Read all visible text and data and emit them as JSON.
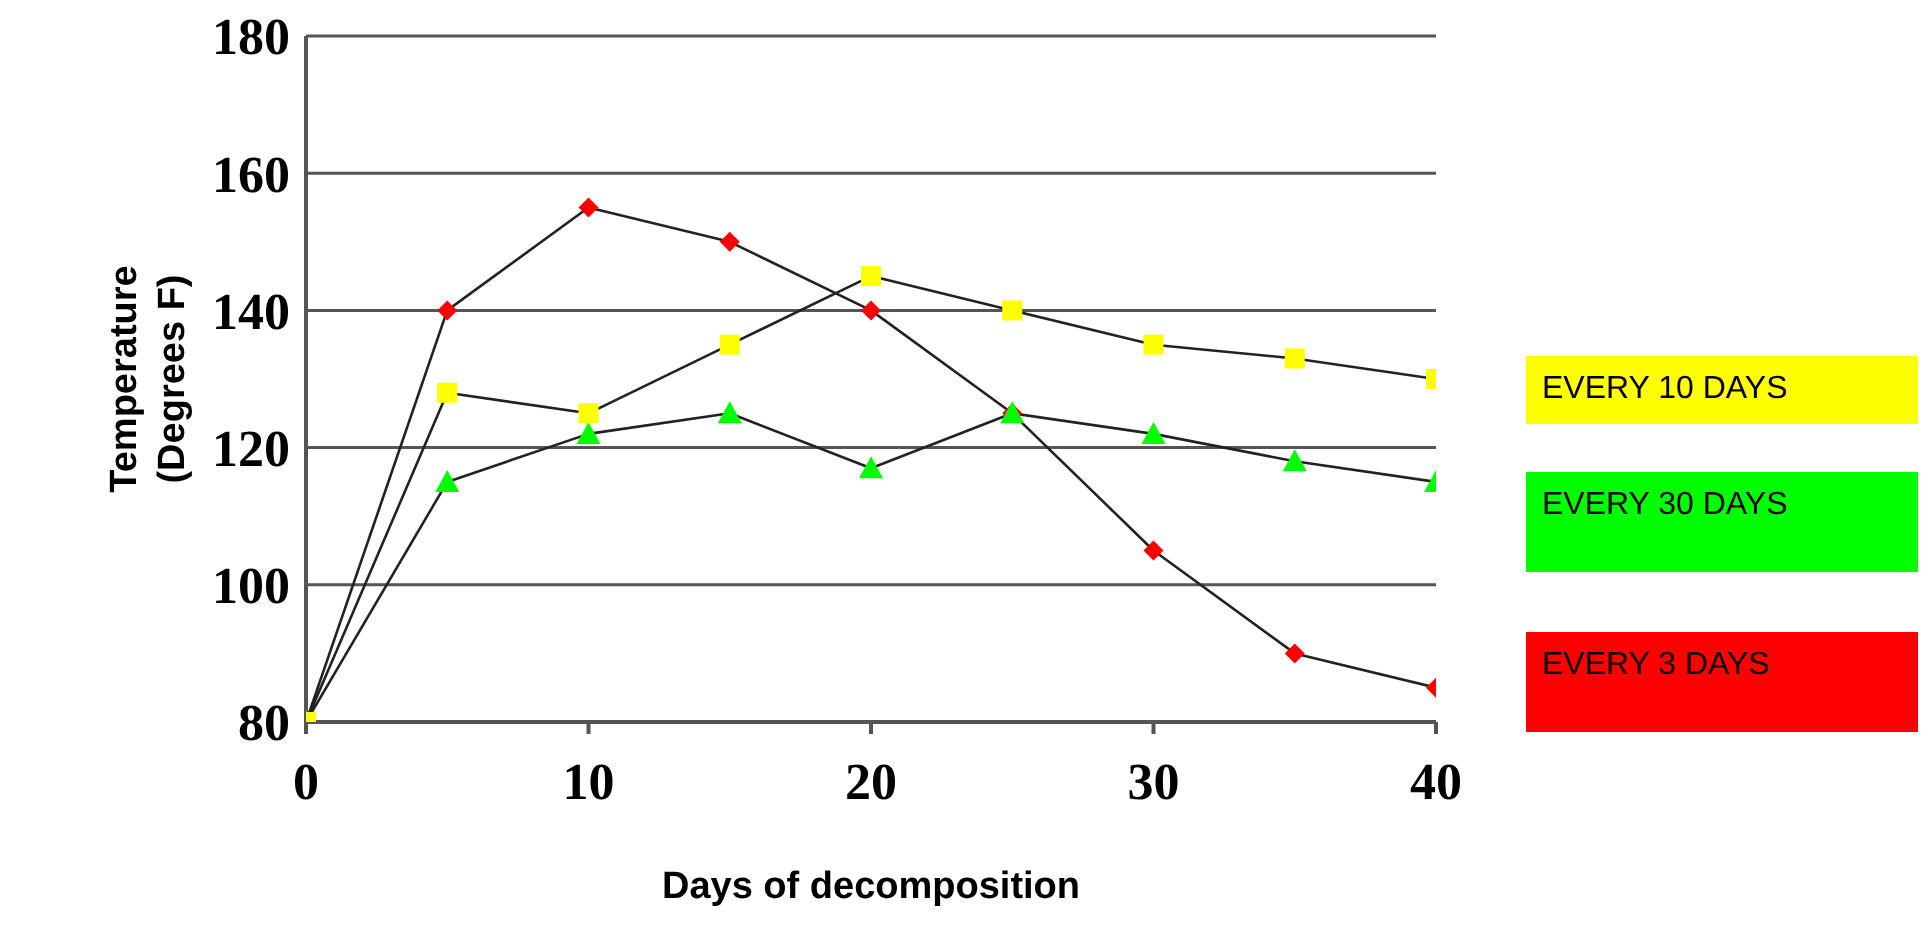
{
  "chart_data": {
    "type": "line",
    "xlabel": "Days of decomposition",
    "ylabel": "Temperature (Degrees F)",
    "x": [
      0,
      5,
      10,
      15,
      20,
      25,
      30,
      35,
      40
    ],
    "series": [
      {
        "name": "EVERY 10 DAYS",
        "color": "#ffff00",
        "marker": "square",
        "values": [
          80,
          128,
          125,
          135,
          145,
          140,
          135,
          133,
          130
        ]
      },
      {
        "name": "EVERY 30 DAYS",
        "color": "#00ff00",
        "marker": "triangle",
        "values": [
          80,
          115,
          122,
          125,
          117,
          125,
          122,
          118,
          115
        ]
      },
      {
        "name": "EVERY 3 DAYS",
        "color": "#ff0000",
        "marker": "diamond",
        "values": [
          80,
          140,
          155,
          150,
          140,
          125,
          105,
          90,
          85
        ]
      }
    ],
    "xlim": [
      0,
      40
    ],
    "xticks": [
      0,
      10,
      20,
      30,
      40
    ],
    "ylim": [
      80,
      180
    ],
    "yticks": [
      80,
      100,
      120,
      140,
      160,
      180
    ],
    "grid": "y",
    "legend": "right"
  }
}
